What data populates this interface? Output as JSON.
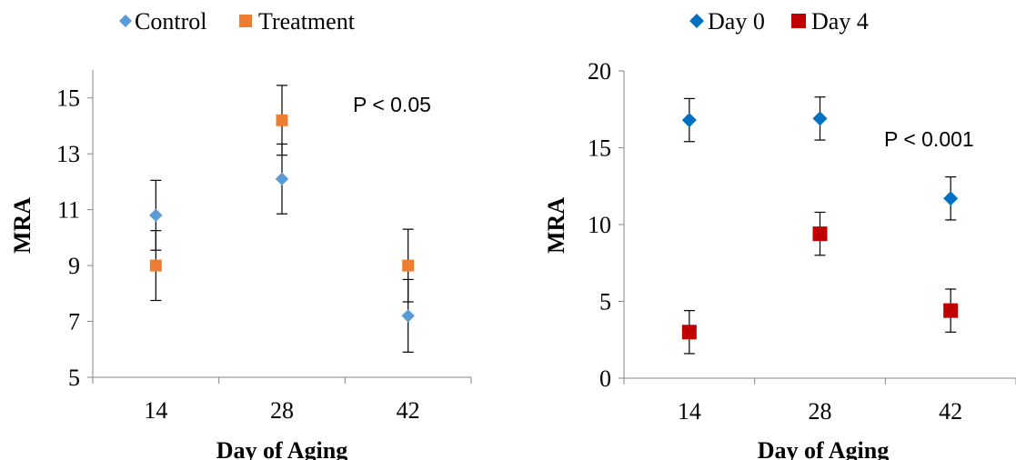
{
  "chart_data": [
    {
      "type": "scatter",
      "xlabel": "Day of Aging",
      "ylabel": "MRA",
      "categories": [
        "14",
        "28",
        "42"
      ],
      "ylim": [
        5,
        16
      ],
      "yticks": [
        "5",
        "7",
        "9",
        "11",
        "13",
        "15"
      ],
      "annotation": "P < 0.05",
      "legend_position": "top",
      "grid": false,
      "series": [
        {
          "name": "Control",
          "marker": "diamond",
          "color": "#5b9bd5",
          "values": [
            10.8,
            12.1,
            7.2
          ],
          "errors": [
            1.25,
            1.25,
            1.3
          ]
        },
        {
          "name": "Treatment",
          "marker": "square",
          "color": "#ed7d31",
          "values": [
            9.0,
            14.2,
            9.0
          ],
          "errors": [
            1.25,
            1.25,
            1.3
          ]
        }
      ]
    },
    {
      "type": "scatter",
      "xlabel": "Day of Aging",
      "ylabel": "MRA",
      "categories": [
        "14",
        "28",
        "42"
      ],
      "ylim": [
        0,
        20
      ],
      "yticks": [
        "0",
        "5",
        "10",
        "15",
        "20"
      ],
      "annotation": "P < 0.001",
      "legend_position": "top",
      "grid": false,
      "series": [
        {
          "name": "Day 0",
          "marker": "diamond",
          "color": "#0070c0",
          "values": [
            16.8,
            16.9,
            11.7
          ],
          "errors": [
            1.4,
            1.4,
            1.4
          ]
        },
        {
          "name": "Day 4",
          "marker": "square",
          "color": "#c00000",
          "values": [
            3.0,
            9.4,
            4.4
          ],
          "errors": [
            1.4,
            1.4,
            1.4
          ]
        }
      ]
    }
  ]
}
